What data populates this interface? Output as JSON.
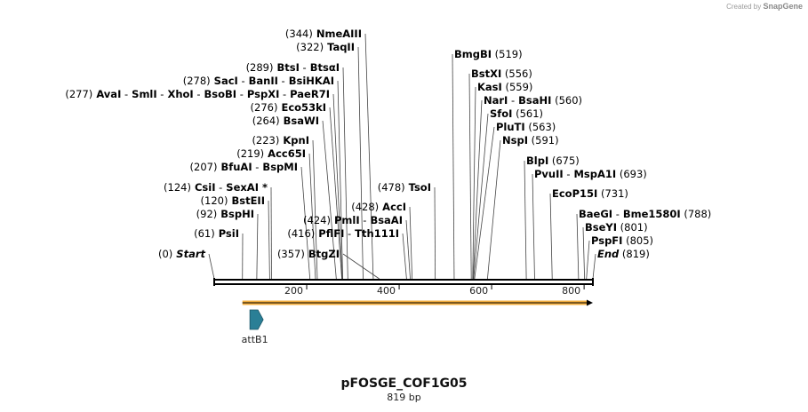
{
  "credit": {
    "prefix": "Created by",
    "brand": "SnapGene"
  },
  "plasmid": {
    "name": "pFOSGE_COF1G05",
    "length_label": "819 bp",
    "length": 819
  },
  "ruler": {
    "ticks": [
      200,
      400,
      600,
      800
    ]
  },
  "features": [
    {
      "name": "attB1",
      "start": 81,
      "end": 106,
      "color": "#2a7f96"
    },
    {
      "name": "",
      "start": 61,
      "end": 819,
      "color": "#f5b041"
    }
  ],
  "sites_left": [
    {
      "text": [
        [
          "(344)",
          "pos"
        ],
        [
          "NmeAIII",
          "nm"
        ]
      ],
      "pos": 344
    },
    {
      "text": [
        [
          "(322)",
          "pos"
        ],
        [
          "TaqII",
          "nm"
        ]
      ],
      "pos": 322
    },
    {
      "text": [
        [
          "(289)",
          "pos"
        ],
        [
          "BtsI",
          "nm"
        ],
        [
          "-",
          "pos"
        ],
        [
          "BtsαI",
          "nm"
        ]
      ],
      "pos": 289
    },
    {
      "text": [
        [
          "(278)",
          "pos"
        ],
        [
          "SacI",
          "nm"
        ],
        [
          "-",
          "pos"
        ],
        [
          "BanII",
          "nm"
        ],
        [
          "-",
          "pos"
        ],
        [
          "BsiHKAI",
          "nm"
        ]
      ],
      "pos": 278
    },
    {
      "text": [
        [
          "(277)",
          "pos"
        ],
        [
          "AvaI",
          "nm"
        ],
        [
          "-",
          "pos"
        ],
        [
          "SmlI",
          "nm"
        ],
        [
          "-",
          "pos"
        ],
        [
          "XhoI",
          "nm"
        ],
        [
          "-",
          "pos"
        ],
        [
          "BsoBI",
          "nm"
        ],
        [
          "-",
          "pos"
        ],
        [
          "PspXI",
          "nm"
        ],
        [
          "-",
          "pos"
        ],
        [
          "PaeR7I",
          "nm"
        ]
      ],
      "pos": 277
    },
    {
      "text": [
        [
          "(276)",
          "pos"
        ],
        [
          "Eco53kI",
          "nm"
        ]
      ],
      "pos": 276
    },
    {
      "text": [
        [
          "(264)",
          "pos"
        ],
        [
          "BsaWI",
          "nm"
        ]
      ],
      "pos": 264
    },
    {
      "text": [
        [
          "(223)",
          "pos"
        ],
        [
          "KpnI",
          "nm"
        ]
      ],
      "pos": 223
    },
    {
      "text": [
        [
          "(219)",
          "pos"
        ],
        [
          "Acc65I",
          "nm"
        ]
      ],
      "pos": 219
    },
    {
      "text": [
        [
          "(207)",
          "pos"
        ],
        [
          "BfuAI",
          "nm"
        ],
        [
          "-",
          "pos"
        ],
        [
          "BspMI",
          "nm"
        ]
      ],
      "pos": 207
    },
    {
      "text": [
        [
          "(124)",
          "pos"
        ],
        [
          "CsiI",
          "nm"
        ],
        [
          "-",
          "pos"
        ],
        [
          "SexAI *",
          "nm"
        ]
      ],
      "pos": 124
    },
    {
      "text": [
        [
          "(120)",
          "pos"
        ],
        [
          "BstEII",
          "nm"
        ]
      ],
      "pos": 120
    },
    {
      "text": [
        [
          "(92)",
          "pos"
        ],
        [
          "BspHI",
          "nm"
        ]
      ],
      "pos": 92
    },
    {
      "text": [
        [
          "(61)",
          "pos"
        ],
        [
          "PsiI",
          "nm"
        ]
      ],
      "pos": 61
    },
    {
      "text": [
        [
          "(0)",
          "pos"
        ],
        [
          "Start",
          "em"
        ]
      ],
      "pos": 0
    }
  ],
  "sites_mid": [
    {
      "text": [
        [
          "(478)",
          "pos"
        ],
        [
          "TsoI",
          "nm"
        ]
      ],
      "pos": 478
    },
    {
      "text": [
        [
          "(428)",
          "pos"
        ],
        [
          "AccI",
          "nm"
        ]
      ],
      "pos": 428
    },
    {
      "text": [
        [
          "(424)",
          "pos"
        ],
        [
          "PmlI",
          "nm"
        ],
        [
          "-",
          "pos"
        ],
        [
          "BsaAI",
          "nm"
        ]
      ],
      "pos": 424
    },
    {
      "text": [
        [
          "(416)",
          "pos"
        ],
        [
          "PflFI",
          "nm"
        ],
        [
          "-",
          "pos"
        ],
        [
          "Tth111I",
          "nm"
        ]
      ],
      "pos": 416
    },
    {
      "text": [
        [
          "(357)",
          "pos"
        ],
        [
          "BtgZI",
          "nm"
        ]
      ],
      "pos": 357
    }
  ],
  "sites_right": [
    {
      "text": [
        [
          "BmgBI",
          "nm"
        ],
        [
          "(519)",
          "pos"
        ]
      ],
      "pos": 519
    },
    {
      "text": [
        [
          "BstXI",
          "nm"
        ],
        [
          "(556)",
          "pos"
        ]
      ],
      "pos": 556
    },
    {
      "text": [
        [
          "KasI",
          "nm"
        ],
        [
          "(559)",
          "pos"
        ]
      ],
      "pos": 559
    },
    {
      "text": [
        [
          "NarI",
          "nm"
        ],
        [
          "-",
          "pos"
        ],
        [
          "BsaHI",
          "nm"
        ],
        [
          "(560)",
          "pos"
        ]
      ],
      "pos": 560
    },
    {
      "text": [
        [
          "SfoI",
          "nm"
        ],
        [
          "(561)",
          "pos"
        ]
      ],
      "pos": 561
    },
    {
      "text": [
        [
          "PluTI",
          "nm"
        ],
        [
          "(563)",
          "pos"
        ]
      ],
      "pos": 563
    },
    {
      "text": [
        [
          "NspI",
          "nm"
        ],
        [
          "(591)",
          "pos"
        ]
      ],
      "pos": 591
    },
    {
      "text": [
        [
          "BlpI",
          "nm"
        ],
        [
          "(675)",
          "pos"
        ]
      ],
      "pos": 675
    },
    {
      "text": [
        [
          "PvuII",
          "nm"
        ],
        [
          "-",
          "pos"
        ],
        [
          "MspA1I",
          "nm"
        ],
        [
          "(693)",
          "pos"
        ]
      ],
      "pos": 693
    },
    {
      "text": [
        [
          "EcoP15I",
          "nm"
        ],
        [
          "(731)",
          "pos"
        ]
      ],
      "pos": 731
    },
    {
      "text": [
        [
          "BaeGI",
          "nm"
        ],
        [
          "-",
          "pos"
        ],
        [
          "Bme1580I",
          "nm"
        ],
        [
          "(788)",
          "pos"
        ]
      ],
      "pos": 788
    },
    {
      "text": [
        [
          "BseYI",
          "nm"
        ],
        [
          "(801)",
          "pos"
        ]
      ],
      "pos": 801
    },
    {
      "text": [
        [
          "PspFI",
          "nm"
        ],
        [
          "(805)",
          "pos"
        ]
      ],
      "pos": 805
    },
    {
      "text": [
        [
          "End",
          "em"
        ],
        [
          "(819)",
          "pos"
        ]
      ],
      "pos": 819
    }
  ]
}
